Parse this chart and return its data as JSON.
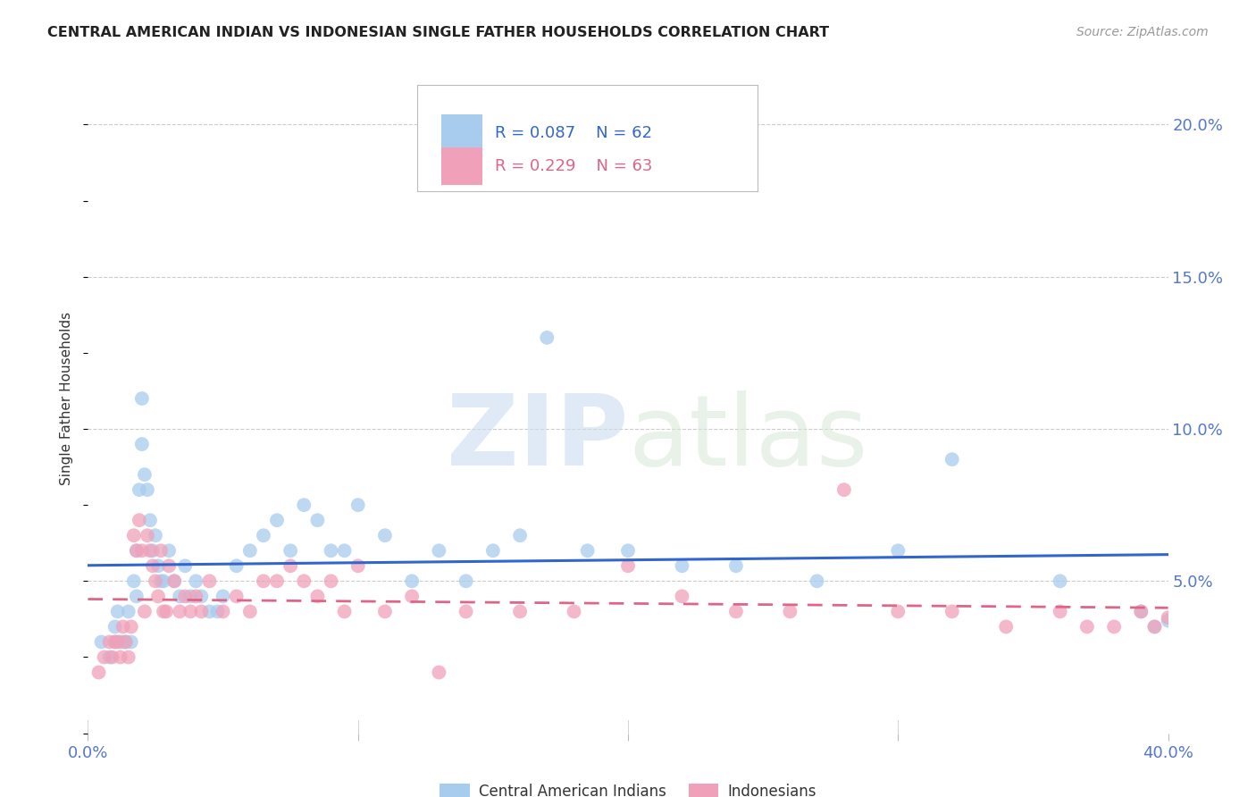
{
  "title": "CENTRAL AMERICAN INDIAN VS INDONESIAN SINGLE FATHER HOUSEHOLDS CORRELATION CHART",
  "source": "Source: ZipAtlas.com",
  "ylabel": "Single Father Households",
  "ytick_labels": [
    "20.0%",
    "15.0%",
    "10.0%",
    "5.0%"
  ],
  "ytick_values": [
    0.2,
    0.15,
    0.1,
    0.05
  ],
  "xlim": [
    0.0,
    0.4
  ],
  "ylim": [
    0.0,
    0.22
  ],
  "blue_R": "R = 0.087",
  "blue_N": "N = 62",
  "pink_R": "R = 0.229",
  "pink_N": "N = 63",
  "blue_color": "#a8ccee",
  "pink_color": "#f0a0b8",
  "blue_line_color": "#3366cc",
  "pink_line_color": "#dd6688",
  "legend_label_blue": "Central American Indians",
  "legend_label_pink": "Indonesians",
  "blue_x": [
    0.005,
    0.008,
    0.01,
    0.01,
    0.011,
    0.012,
    0.013,
    0.014,
    0.015,
    0.016,
    0.017,
    0.018,
    0.018,
    0.019,
    0.02,
    0.02,
    0.021,
    0.022,
    0.023,
    0.024,
    0.025,
    0.026,
    0.027,
    0.028,
    0.03,
    0.032,
    0.034,
    0.036,
    0.038,
    0.04,
    0.042,
    0.045,
    0.048,
    0.05,
    0.055,
    0.06,
    0.065,
    0.07,
    0.075,
    0.08,
    0.085,
    0.09,
    0.095,
    0.1,
    0.11,
    0.12,
    0.13,
    0.14,
    0.15,
    0.16,
    0.17,
    0.185,
    0.2,
    0.22,
    0.24,
    0.27,
    0.3,
    0.32,
    0.36,
    0.39,
    0.395,
    0.4
  ],
  "blue_y": [
    0.03,
    0.025,
    0.035,
    0.03,
    0.04,
    0.03,
    0.03,
    0.03,
    0.04,
    0.03,
    0.05,
    0.045,
    0.06,
    0.08,
    0.095,
    0.11,
    0.085,
    0.08,
    0.07,
    0.06,
    0.065,
    0.055,
    0.05,
    0.05,
    0.06,
    0.05,
    0.045,
    0.055,
    0.045,
    0.05,
    0.045,
    0.04,
    0.04,
    0.045,
    0.055,
    0.06,
    0.065,
    0.07,
    0.06,
    0.075,
    0.07,
    0.06,
    0.06,
    0.075,
    0.065,
    0.05,
    0.06,
    0.05,
    0.06,
    0.065,
    0.13,
    0.06,
    0.06,
    0.055,
    0.055,
    0.05,
    0.06,
    0.09,
    0.05,
    0.04,
    0.035,
    0.037
  ],
  "pink_x": [
    0.004,
    0.006,
    0.008,
    0.009,
    0.01,
    0.011,
    0.012,
    0.013,
    0.014,
    0.015,
    0.016,
    0.017,
    0.018,
    0.019,
    0.02,
    0.021,
    0.022,
    0.023,
    0.024,
    0.025,
    0.026,
    0.027,
    0.028,
    0.029,
    0.03,
    0.032,
    0.034,
    0.036,
    0.038,
    0.04,
    0.042,
    0.045,
    0.05,
    0.055,
    0.06,
    0.065,
    0.07,
    0.075,
    0.08,
    0.085,
    0.09,
    0.095,
    0.1,
    0.11,
    0.12,
    0.13,
    0.14,
    0.16,
    0.18,
    0.2,
    0.22,
    0.24,
    0.26,
    0.28,
    0.3,
    0.32,
    0.34,
    0.36,
    0.37,
    0.38,
    0.39,
    0.395,
    0.4
  ],
  "pink_y": [
    0.02,
    0.025,
    0.03,
    0.025,
    0.03,
    0.03,
    0.025,
    0.035,
    0.03,
    0.025,
    0.035,
    0.065,
    0.06,
    0.07,
    0.06,
    0.04,
    0.065,
    0.06,
    0.055,
    0.05,
    0.045,
    0.06,
    0.04,
    0.04,
    0.055,
    0.05,
    0.04,
    0.045,
    0.04,
    0.045,
    0.04,
    0.05,
    0.04,
    0.045,
    0.04,
    0.05,
    0.05,
    0.055,
    0.05,
    0.045,
    0.05,
    0.04,
    0.055,
    0.04,
    0.045,
    0.02,
    0.04,
    0.04,
    0.04,
    0.055,
    0.045,
    0.04,
    0.04,
    0.08,
    0.04,
    0.04,
    0.035,
    0.04,
    0.035,
    0.035,
    0.04,
    0.035,
    0.038
  ]
}
